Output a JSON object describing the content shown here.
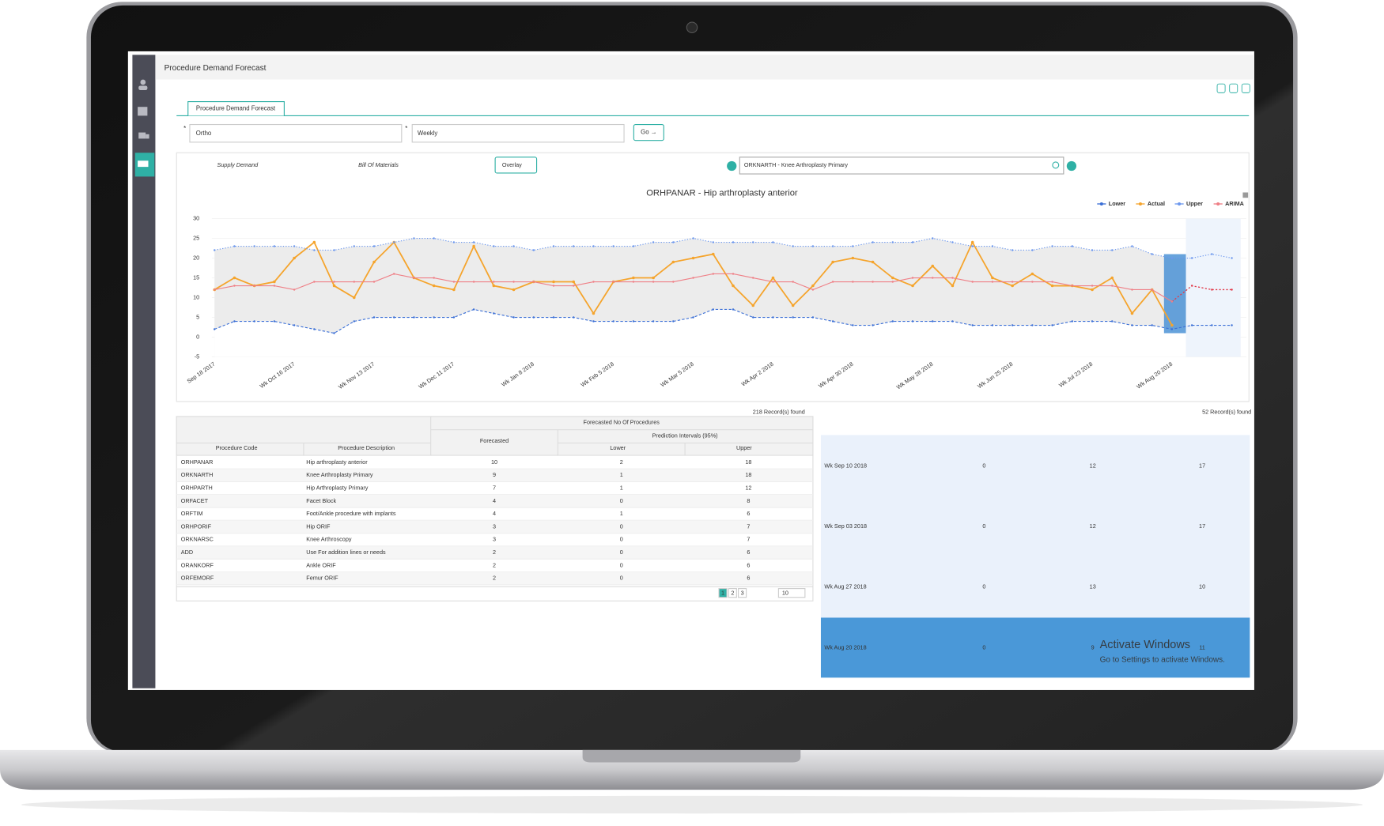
{
  "header": {
    "title": "Procedure Demand Forecast"
  },
  "tab": "Procedure Demand Forecast",
  "filters": {
    "specialty": "Ortho",
    "period": "Weekly",
    "go": "Go →"
  },
  "links": [
    "Supply Demand",
    "Bill Of Materials"
  ],
  "overlay": "Overlay",
  "search": "ORKNARTH - Knee Arthroplasty Primary",
  "chart": {
    "type": "line",
    "title": "ORHPANAR - Hip arthroplasty anterior",
    "categories": [
      "Sep 18 2017",
      null,
      null,
      null,
      "Wk Oct 16 2017",
      null,
      null,
      null,
      "Wk Nov 13 2017",
      null,
      null,
      null,
      "Wk Dec 11 2017",
      null,
      null,
      null,
      "Wk Jan 8 2018",
      null,
      null,
      null,
      "Wk Feb 5 2018",
      null,
      null,
      null,
      "Wk Mar 5 2018",
      null,
      null,
      null,
      "Wk Apr 2 2018",
      null,
      null,
      null,
      "Wk Apr 30 2018",
      null,
      null,
      null,
      "Wk May 28 2018",
      null,
      null,
      null,
      "Wk Jun 25 2018",
      null,
      null,
      null,
      "Wk Jul 23 2018",
      null,
      null,
      null,
      "Wk Aug 20 2018",
      null,
      null,
      null
    ],
    "ylim": [
      -5,
      30
    ],
    "yticks": [
      30,
      25,
      20,
      15,
      10,
      5,
      0,
      -5
    ],
    "series": [
      {
        "name": "Lower",
        "color": "#3b6fd6",
        "values": [
          2,
          4,
          4,
          4,
          3,
          2,
          1,
          4,
          5,
          5,
          5,
          5,
          5,
          7,
          6,
          5,
          5,
          5,
          5,
          4,
          4,
          4,
          4,
          4,
          5,
          7,
          7,
          5,
          5,
          5,
          5,
          4,
          3,
          3,
          4,
          4,
          4,
          4,
          3,
          3,
          3,
          3,
          3,
          4,
          4,
          4,
          3,
          3,
          2,
          3,
          3,
          3
        ]
      },
      {
        "name": "Actual",
        "color": "#f5a42c",
        "values": [
          12,
          15,
          13,
          14,
          20,
          24,
          13,
          10,
          19,
          24,
          15,
          13,
          12,
          23,
          13,
          12,
          14,
          14,
          14,
          6,
          14,
          15,
          15,
          19,
          20,
          21,
          13,
          8,
          15,
          8,
          13,
          19,
          20,
          19,
          15,
          13,
          18,
          13,
          24,
          15,
          13,
          16,
          13,
          13,
          12,
          15,
          6,
          12,
          3,
          null,
          null,
          null
        ]
      },
      {
        "name": "Upper",
        "color": "#6d98ee",
        "values": [
          22,
          23,
          23,
          23,
          23,
          22,
          22,
          23,
          23,
          24,
          25,
          25,
          24,
          24,
          23,
          23,
          22,
          23,
          23,
          23,
          23,
          23,
          24,
          24,
          25,
          24,
          24,
          24,
          24,
          23,
          23,
          23,
          23,
          24,
          24,
          24,
          25,
          24,
          23,
          23,
          22,
          22,
          23,
          23,
          22,
          22,
          23,
          21,
          20,
          20,
          21,
          20
        ]
      },
      {
        "name": "ARIMA",
        "color": "#ef7f86",
        "values": [
          12,
          13,
          13,
          13,
          12,
          14,
          14,
          14,
          14,
          16,
          15,
          15,
          14,
          14,
          14,
          14,
          14,
          13,
          13,
          14,
          14,
          14,
          14,
          14,
          15,
          16,
          16,
          15,
          14,
          14,
          12,
          14,
          14,
          14,
          14,
          15,
          15,
          15,
          14,
          14,
          14,
          14,
          14,
          13,
          13,
          13,
          12,
          12,
          9,
          13,
          12,
          12
        ]
      }
    ]
  },
  "table": {
    "records": "218 Record(s) found",
    "group_header": "Forecasted No Of Procedures",
    "interval_header": "Prediction Intervals (95%)",
    "columns": [
      "Procedure Code",
      "Procedure Description",
      "Forecasted",
      "Lower",
      "Upper"
    ],
    "rows": [
      [
        "ORHPANAR",
        "Hip arthroplasty anterior",
        10,
        2,
        18
      ],
      [
        "ORKNARTH",
        "Knee Arthroplasty Primary",
        9,
        1,
        18
      ],
      [
        "ORHPARTH",
        "Hip Arthroplasty Primary",
        7,
        1,
        12
      ],
      [
        "ORFACET",
        "Facet Block",
        4,
        0,
        8
      ],
      [
        "ORFTIM",
        "Foot/Ankle procedure with implants",
        4,
        1,
        6
      ],
      [
        "ORHPORIF",
        "Hip ORIF",
        3,
        0,
        7
      ],
      [
        "ORKNARSC",
        "Knee Arthroscopy",
        3,
        0,
        7
      ],
      [
        "ADD",
        "Use For addition lines or needs",
        2,
        0,
        6
      ],
      [
        "ORANKORF",
        "Ankle ORIF",
        2,
        0,
        6
      ],
      [
        "ORFEMORF",
        "Femur ORIF",
        2,
        0,
        6
      ]
    ],
    "pages": [
      1,
      2,
      3
    ],
    "page_size": 10
  },
  "side_table": {
    "records": "52 Record(s) found",
    "rows": [
      [
        "Wk Sep 10 2018",
        0,
        12,
        17
      ],
      [
        "Wk Sep 03 2018",
        0,
        12,
        17
      ],
      [
        "Wk Aug 27 2018",
        0,
        13,
        10
      ],
      [
        "Wk Aug 20 2018",
        0,
        9,
        11
      ]
    ]
  },
  "watermark": {
    "title": "Activate Windows",
    "text": "Go to Settings to activate Windows."
  }
}
